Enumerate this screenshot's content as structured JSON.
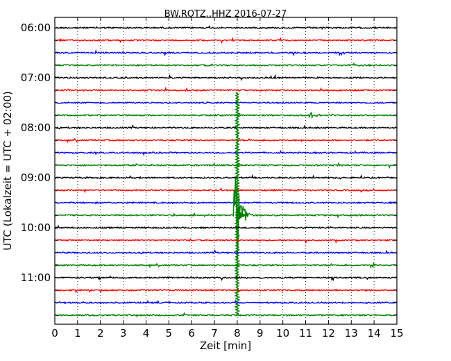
{
  "chart_data": {
    "type": "line",
    "title": "BW.ROTZ..HHZ 2016-07-27",
    "xlabel": "Zeit  [min]",
    "ylabel": "UTC (Lokalzeit = UTC + 02:00)",
    "xlim": [
      0,
      15
    ],
    "x_ticks": [
      "0",
      "1",
      "2",
      "3",
      "4",
      "5",
      "6",
      "7",
      "8",
      "9",
      "10",
      "11",
      "12",
      "13",
      "14",
      "15"
    ],
    "y_tick_labels": [
      "06:00",
      "07:00",
      "08:00",
      "09:00",
      "10:00",
      "11:00"
    ],
    "grid": "vertical dotted",
    "trace_interval_min": 15,
    "trace_colors": [
      "#000000",
      "#ff0000",
      "#0000ff",
      "#008000"
    ],
    "traces": [
      "06:00",
      "06:15",
      "06:30",
      "06:45",
      "07:00",
      "07:15",
      "07:30",
      "07:45",
      "08:00",
      "08:15",
      "08:30",
      "08:45",
      "09:00",
      "09:15",
      "09:30",
      "09:45",
      "10:00",
      "10:15",
      "10:30",
      "10:45",
      "11:00",
      "11:15",
      "11:30",
      "11:45"
    ],
    "events": [
      {
        "trace": "09:45",
        "x": 8.0,
        "peak_amplitude": 10.5,
        "note": "large event, signal spans multiple traces",
        "reach_up_traces": 9.8,
        "reach_down_traces": 8.0
      },
      {
        "trace": "07:45",
        "x": 11.3,
        "peak_amplitude": 0.5
      },
      {
        "trace": "10:45",
        "x": 14.0,
        "peak_amplitude": 0.35
      }
    ]
  }
}
